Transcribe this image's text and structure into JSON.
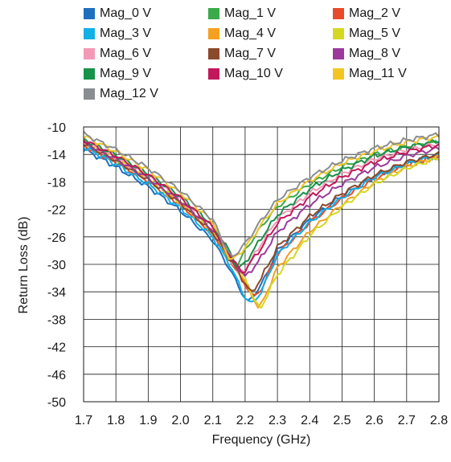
{
  "chart_data": {
    "type": "line",
    "title": "",
    "xlabel": "Frequency (GHz)",
    "ylabel": "Return Loss (dB)",
    "xlim": [
      1.7,
      2.8
    ],
    "ylim": [
      -50,
      -10
    ],
    "xticks": [
      "1.7",
      "1.8",
      "1.9",
      "2.0",
      "2.1",
      "2.2",
      "2.3",
      "2.4",
      "2.5",
      "2.6",
      "2.7",
      "2.8"
    ],
    "yticks": [
      "-10",
      "-14",
      "-18",
      "-22",
      "-26",
      "-30",
      "-34",
      "-38",
      "-42",
      "-46",
      "-50"
    ],
    "grid": true,
    "legend_position": "top",
    "x": [
      1.7,
      1.8,
      1.9,
      2.0,
      2.1,
      2.15,
      2.2,
      2.25,
      2.3,
      2.4,
      2.5,
      2.6,
      2.7,
      2.8
    ],
    "series": [
      {
        "name": "Mag_0 V",
        "color": "#1f6fbf",
        "min_x": 2.21,
        "min_y": -35.5,
        "values": [
          -13.2,
          -15.8,
          -18.7,
          -22.2,
          -26.5,
          -30.5,
          -35.0,
          -33.0,
          -28.0,
          -23.5,
          -20.0,
          -17.2,
          -15.3,
          -14.0
        ]
      },
      {
        "name": "Mag_1 V",
        "color": "#3aaa4a",
        "min_x": 2.17,
        "min_y": -30.5,
        "values": [
          -12.5,
          -14.8,
          -17.5,
          -20.8,
          -25.0,
          -29.5,
          -28.0,
          -24.5,
          -21.6,
          -18.3,
          -15.8,
          -14.0,
          -12.9,
          -12.2
        ]
      },
      {
        "name": "Mag_2 V",
        "color": "#e84a2a",
        "min_x": 2.23,
        "min_y": -34.8,
        "values": [
          -12.7,
          -15.1,
          -17.9,
          -21.3,
          -25.6,
          -29.0,
          -33.0,
          -33.6,
          -28.5,
          -23.9,
          -20.4,
          -17.5,
          -15.5,
          -14.2
        ]
      },
      {
        "name": "Mag_3 V",
        "color": "#12b0e4",
        "min_x": 2.22,
        "min_y": -35.8,
        "values": [
          -12.9,
          -15.4,
          -18.3,
          -21.8,
          -26.0,
          -29.8,
          -34.8,
          -34.0,
          -28.6,
          -23.9,
          -20.3,
          -17.3,
          -15.4,
          -14.1
        ]
      },
      {
        "name": "Mag_4 V",
        "color": "#f5a020",
        "min_x": 2.24,
        "min_y": -36.2,
        "values": [
          -12.3,
          -14.7,
          -17.6,
          -21.1,
          -25.4,
          -28.8,
          -32.5,
          -35.9,
          -30.5,
          -25.2,
          -21.3,
          -18.1,
          -15.8,
          -14.3
        ]
      },
      {
        "name": "Mag_5 V",
        "color": "#d4d822",
        "min_x": 2.245,
        "min_y": -36.7,
        "values": [
          -12.1,
          -14.5,
          -17.4,
          -20.9,
          -25.2,
          -28.6,
          -32.2,
          -36.2,
          -31.5,
          -25.8,
          -21.6,
          -18.3,
          -16.0,
          -14.5
        ]
      },
      {
        "name": "Mag_6 V",
        "color": "#f39ab6",
        "min_x": 2.18,
        "min_y": -31.5,
        "values": [
          -12.2,
          -14.5,
          -17.2,
          -20.5,
          -24.7,
          -28.5,
          -30.8,
          -27.0,
          -23.4,
          -19.6,
          -16.8,
          -14.7,
          -13.3,
          -12.4
        ]
      },
      {
        "name": "Mag_7 V",
        "color": "#8b4a2b",
        "min_x": 2.22,
        "min_y": -34.2,
        "values": [
          -12.4,
          -14.9,
          -17.7,
          -21.1,
          -25.4,
          -29.0,
          -32.8,
          -32.0,
          -27.5,
          -23.0,
          -19.7,
          -17.0,
          -15.1,
          -13.9
        ]
      },
      {
        "name": "Mag_8 V",
        "color": "#9b3a9b",
        "min_x": 2.2,
        "min_y": -32.0,
        "values": [
          -12.3,
          -14.7,
          -17.5,
          -20.8,
          -25.0,
          -28.6,
          -31.8,
          -29.0,
          -25.3,
          -21.3,
          -18.3,
          -15.9,
          -14.2,
          -13.1
        ]
      },
      {
        "name": "Mag_9 V",
        "color": "#16924a",
        "min_x": 2.18,
        "min_y": -30.6,
        "values": [
          -11.8,
          -14.1,
          -16.8,
          -20.1,
          -24.3,
          -28.0,
          -29.8,
          -26.2,
          -22.8,
          -19.0,
          -16.3,
          -14.2,
          -12.9,
          -12.0
        ]
      },
      {
        "name": "Mag_10 V",
        "color": "#c2185b",
        "min_x": 2.19,
        "min_y": -31.3,
        "values": [
          -11.9,
          -14.2,
          -17.0,
          -20.3,
          -24.6,
          -28.4,
          -30.8,
          -27.6,
          -24.0,
          -20.2,
          -17.3,
          -15.1,
          -13.6,
          -12.6
        ]
      },
      {
        "name": "Mag_11 V",
        "color": "#f2c522",
        "min_x": 2.16,
        "min_y": -29.4,
        "values": [
          -11.3,
          -13.6,
          -16.3,
          -19.6,
          -23.8,
          -29.0,
          -27.6,
          -24.2,
          -21.2,
          -17.8,
          -15.3,
          -13.5,
          -12.2,
          -11.4
        ]
      },
      {
        "name": "Mag_12 V",
        "color": "#8a8d92",
        "min_x": 2.16,
        "min_y": -29.0,
        "values": [
          -11.0,
          -13.3,
          -16.0,
          -19.3,
          -23.5,
          -28.5,
          -27.0,
          -23.6,
          -20.6,
          -17.3,
          -14.9,
          -13.1,
          -11.9,
          -11.1
        ]
      }
    ]
  }
}
